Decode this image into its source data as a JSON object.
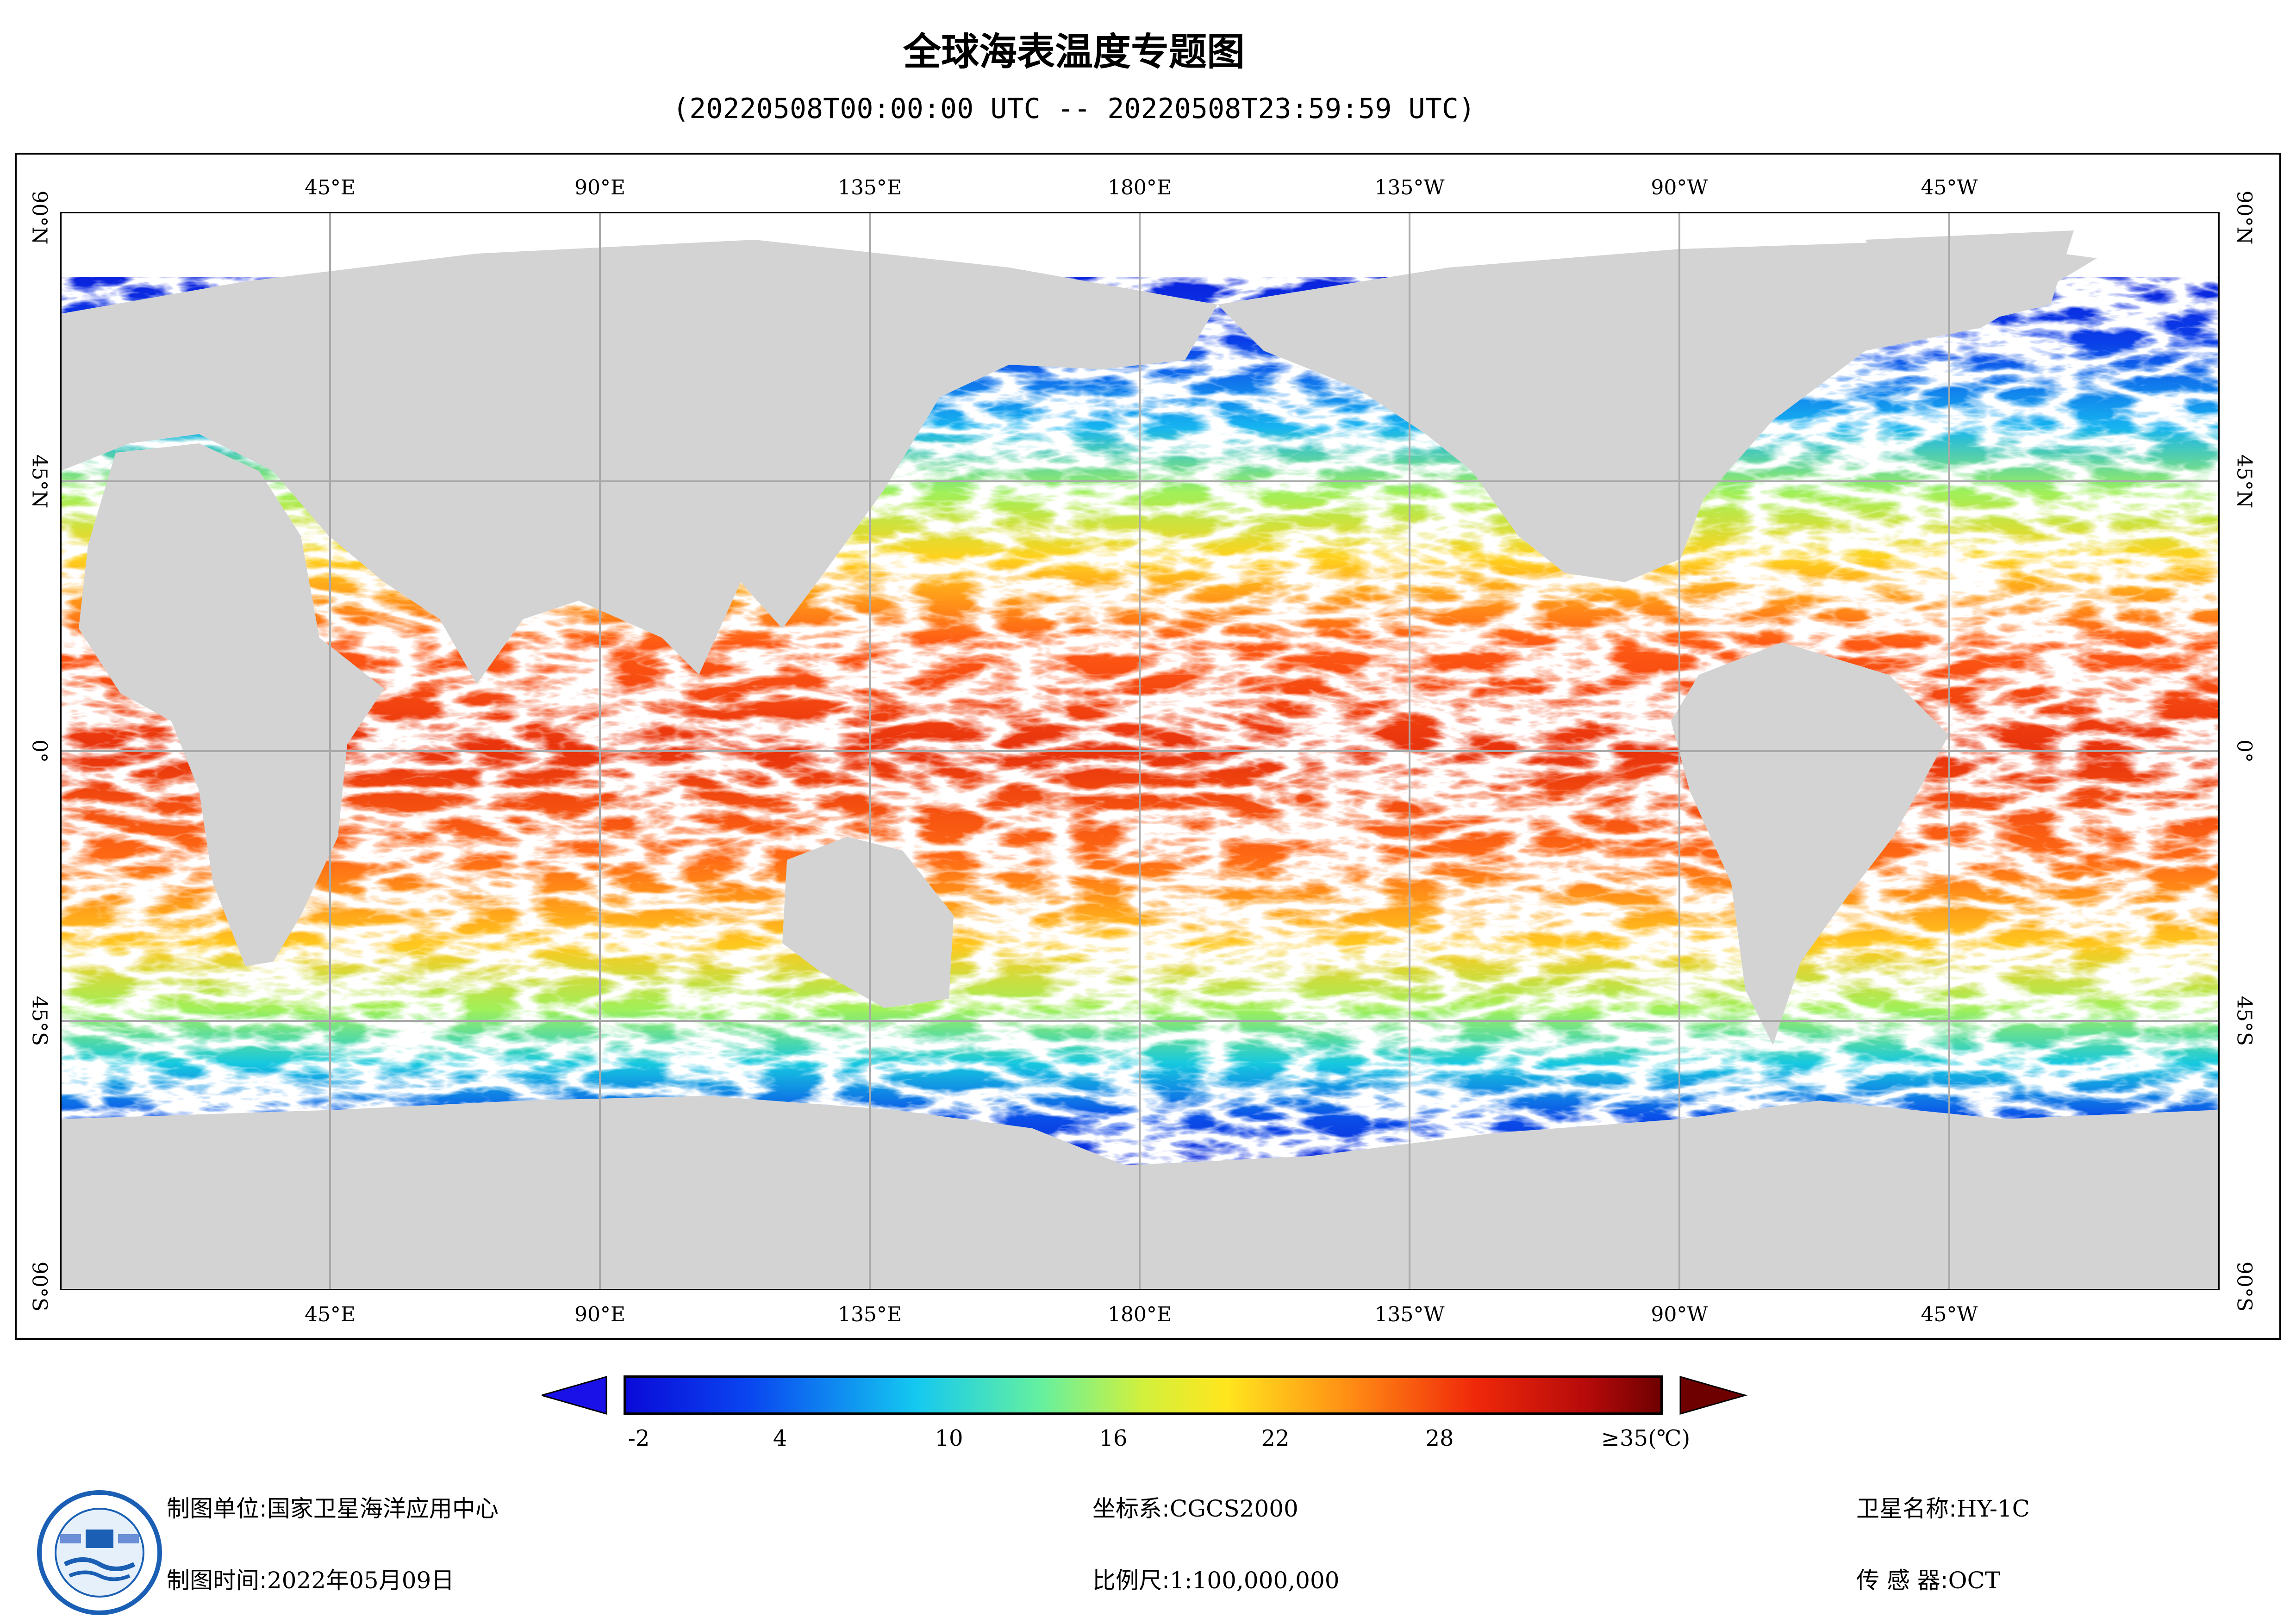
{
  "title": "全球海表温度专题图",
  "subtitle": "(20220508T00:00:00 UTC -- 20220508T23:59:59 UTC)",
  "axes": {
    "lon_ticks": [
      "45°E",
      "90°E",
      "135°E",
      "180°E",
      "135°W",
      "90°W",
      "45°W"
    ],
    "lat_ticks": [
      "90°N",
      "45°N",
      "0°",
      "45°S",
      "90°S"
    ]
  },
  "colorbar": {
    "labels": [
      "-2",
      "4",
      "10",
      "16",
      "22",
      "28",
      "≥35(℃)"
    ],
    "min_value": -2,
    "max_value": 35,
    "low_color": "#1a10e8",
    "high_color": "#6e0000"
  },
  "colors": {
    "land": "#d3d3d3",
    "no_data": "#ffffff",
    "grid": "#a9a9a9",
    "cold": "#0a14d8",
    "cool": "#16b4f0",
    "mild": "#9ff05a",
    "warm": "#ffd21e",
    "hot": "#ff5a14",
    "very_hot": "#d8180c"
  },
  "footer": {
    "unit_label": "制图单位:",
    "unit_value": "国家卫星海洋应用中心",
    "time_label": "制图时间:",
    "time_value": "2022年05月09日",
    "crs_label": "坐标系:",
    "crs_value": "CGCS2000",
    "scale_label": "比例尺:",
    "scale_value": "1:100,000,000",
    "satellite_label": "卫星名称:",
    "satellite_value": "HY-1C",
    "sensor_label": "传 感 器:",
    "sensor_value": "OCT"
  },
  "logo": {
    "icon": "soa-satellite-ocean-center-logo"
  }
}
